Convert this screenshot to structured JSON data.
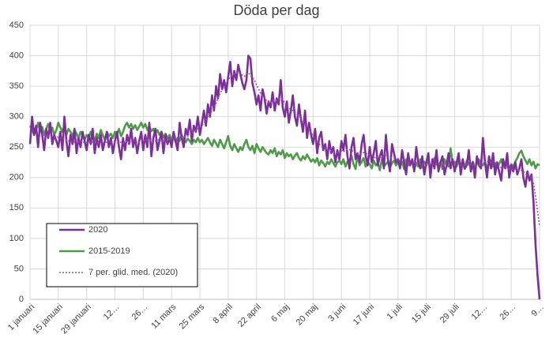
{
  "chart_data": {
    "type": "line",
    "title": "Döda per dag",
    "categories": [
      "1 januari",
      null,
      null,
      null,
      null,
      null,
      null,
      null,
      null,
      null,
      null,
      null,
      null,
      null,
      "15 januari",
      null,
      null,
      null,
      null,
      null,
      null,
      null,
      null,
      null,
      null,
      null,
      null,
      null,
      "29 januari",
      null,
      null,
      null,
      null,
      null,
      null,
      null,
      null,
      null,
      null,
      null,
      null,
      null,
      "12…",
      null,
      null,
      null,
      null,
      null,
      null,
      null,
      null,
      null,
      null,
      null,
      null,
      null,
      "26…",
      null,
      null,
      null,
      null,
      null,
      null,
      null,
      null,
      null,
      null,
      null,
      null,
      null,
      "11 mars",
      null,
      null,
      null,
      null,
      null,
      null,
      null,
      null,
      null,
      null,
      null,
      null,
      null,
      "25 mars",
      null,
      null,
      null,
      null,
      null,
      null,
      null,
      null,
      null,
      null,
      null,
      null,
      null,
      "8 april",
      null,
      null,
      null,
      null,
      null,
      null,
      null,
      null,
      null,
      null,
      null,
      null,
      null,
      "22 april",
      null,
      null,
      null,
      null,
      null,
      null,
      null,
      null,
      null,
      null,
      null,
      null,
      null,
      "6 maj",
      null,
      null,
      null,
      null,
      null,
      null,
      null,
      null,
      null,
      null,
      null,
      null,
      null,
      "20 maj",
      null,
      null,
      null,
      null,
      null,
      null,
      null,
      null,
      null,
      null,
      null,
      null,
      null,
      "3 juni",
      null,
      null,
      null,
      null,
      null,
      null,
      null,
      null,
      null,
      null,
      null,
      null,
      null,
      "17 juni",
      null,
      null,
      null,
      null,
      null,
      null,
      null,
      null,
      null,
      null,
      null,
      null,
      null,
      "1 juli",
      null,
      null,
      null,
      null,
      null,
      null,
      null,
      null,
      null,
      null,
      null,
      null,
      null,
      "15 juli",
      null,
      null,
      null,
      null,
      null,
      null,
      null,
      null,
      null,
      null,
      null,
      null,
      null,
      "29 juli",
      null,
      null,
      null,
      null,
      null,
      null,
      null,
      null,
      null,
      null,
      null,
      null,
      null,
      "12…",
      null,
      null,
      null,
      null,
      null,
      null,
      null,
      null,
      null,
      null,
      null,
      null,
      null,
      "26…",
      null,
      null,
      null,
      null,
      null,
      null,
      null,
      null,
      null,
      null,
      null,
      null,
      null,
      "9…"
    ],
    "series": [
      {
        "name": "2020",
        "color": "#7b2f98",
        "style": "solid",
        "values": [
          255,
          300,
          270,
          285,
          250,
          290,
          270,
          245,
          280,
          265,
          290,
          255,
          270,
          260,
          250,
          275,
          245,
          300,
          260,
          235,
          270,
          255,
          280,
          240,
          265,
          250,
          275,
          260,
          245,
          270,
          255,
          280,
          240,
          265,
          250,
          270,
          245,
          260,
          275,
          250,
          265,
          240,
          260,
          275,
          250,
          230,
          265,
          245,
          270,
          255,
          280,
          250,
          265,
          240,
          260,
          275,
          245,
          270,
          250,
          290,
          235,
          265,
          280,
          245,
          260,
          275,
          240,
          270,
          255,
          265,
          250,
          275,
          260,
          245,
          290,
          265,
          250,
          280,
          270,
          295,
          260,
          285,
          275,
          300,
          270,
          290,
          310,
          285,
          320,
          300,
          335,
          310,
          350,
          330,
          370,
          345,
          360,
          340,
          365,
          390,
          350,
          375,
          360,
          385,
          370,
          355,
          345,
          360,
          400,
          395,
          355,
          340,
          320,
          335,
          310,
          345,
          330,
          305,
          325,
          315,
          340,
          310,
          330,
          320,
          360,
          315,
          300,
          325,
          290,
          310,
          335,
          300,
          285,
          320,
          295,
          275,
          310,
          265,
          290,
          270,
          255,
          280,
          240,
          265,
          275,
          245,
          255,
          230,
          260,
          240,
          250,
          225,
          245,
          230,
          260,
          245,
          270,
          235,
          215,
          250,
          265,
          230,
          240,
          225,
          255,
          270,
          235,
          220,
          250,
          225,
          240,
          260,
          220,
          235,
          245,
          215,
          270,
          230,
          210,
          255,
          240,
          225,
          230,
          215,
          245,
          225,
          205,
          240,
          220,
          230,
          210,
          250,
          225,
          215,
          235,
          205,
          225,
          240,
          200,
          230,
          215,
          245,
          210,
          225,
          235,
          205,
          220,
          240,
          215,
          230,
          210,
          225,
          240,
          205,
          230,
          215,
          220,
          245,
          210,
          225,
          200,
          235,
          220,
          215,
          265,
          225,
          200,
          235,
          215,
          240,
          205,
          225,
          210,
          195,
          230,
          215,
          240,
          200,
          220,
          210,
          225,
          205,
          215,
          230,
          200,
          185,
          210,
          195,
          205,
          160,
          90,
          40,
          0
        ]
      },
      {
        "name": "2015-2019",
        "color": "#4f9a48",
        "style": "solid",
        "values": [
          285,
          280,
          270,
          278,
          290,
          275,
          283,
          270,
          280,
          288,
          275,
          282,
          270,
          278,
          290,
          282,
          275,
          285,
          270,
          280,
          275,
          268,
          278,
          272,
          265,
          275,
          270,
          262,
          270,
          265,
          275,
          268,
          260,
          272,
          265,
          278,
          270,
          262,
          275,
          268,
          272,
          265,
          275,
          270,
          280,
          268,
          275,
          285,
          290,
          282,
          288,
          280,
          286,
          278,
          284,
          290,
          282,
          288,
          278,
          284,
          276,
          280,
          272,
          278,
          270,
          275,
          266,
          272,
          265,
          270,
          262,
          268,
          258,
          265,
          260,
          270,
          262,
          258,
          264,
          260,
          255,
          262,
          258,
          265,
          258,
          262,
          255,
          260,
          265,
          258,
          252,
          262,
          256,
          250,
          262,
          255,
          248,
          258,
          268,
          252,
          245,
          255,
          248,
          242,
          250,
          245,
          255,
          262,
          250,
          245,
          252,
          240,
          255,
          248,
          242,
          250,
          245,
          240,
          238,
          245,
          240,
          248,
          235,
          242,
          238,
          245,
          232,
          240,
          235,
          238,
          230,
          236,
          240,
          232,
          228,
          235,
          230,
          238,
          232,
          226,
          230,
          225,
          232,
          220,
          228,
          224,
          218,
          226,
          222,
          230,
          224,
          218,
          225,
          228,
          222,
          230,
          218,
          226,
          228,
          236,
          222,
          214,
          238,
          220,
          226,
          232,
          218,
          225,
          222,
          215,
          228,
          220,
          224,
          212,
          230,
          218,
          222,
          226,
          216,
          224,
          228,
          220,
          225,
          218,
          226,
          214,
          230,
          220,
          222,
          228,
          212,
          224,
          218,
          230,
          216,
          226,
          220,
          228,
          216,
          224,
          232,
          222,
          218,
          226,
          214,
          230,
          222,
          218,
          248,
          224,
          226,
          218,
          232,
          220,
          224,
          214,
          228,
          222,
          218,
          226,
          216,
          224,
          230,
          222,
          220,
          226,
          214,
          222,
          228,
          218,
          224,
          216,
          222,
          230,
          218,
          224,
          220,
          215,
          222,
          218,
          226,
          232,
          240,
          244,
          235,
          228,
          222,
          230,
          220,
          226,
          215,
          222,
          220
        ]
      },
      {
        "name": "7 per. glid. med. (2020)",
        "color": "#9a4fb0",
        "style": "dotted",
        "values": [
          null,
          null,
          null,
          null,
          null,
          null,
          270,
          272,
          268,
          270,
          272,
          268,
          266,
          268,
          266,
          264,
          265,
          262,
          262,
          260,
          258,
          260,
          258,
          262,
          258,
          260,
          258,
          258,
          258,
          260,
          258,
          258,
          260,
          258,
          256,
          258,
          256,
          258,
          258,
          260,
          258,
          258,
          258,
          256,
          258,
          258,
          256,
          258,
          260,
          258,
          258,
          262,
          260,
          258,
          258,
          262,
          262,
          260,
          262,
          262,
          260,
          258,
          260,
          262,
          262,
          260,
          262,
          262,
          260,
          262,
          265,
          264,
          266,
          262,
          266,
          266,
          265,
          268,
          268,
          270,
          272,
          275,
          278,
          280,
          282,
          285,
          290,
          295,
          300,
          305,
          310,
          315,
          322,
          330,
          338,
          344,
          350,
          356,
          360,
          365,
          368,
          370,
          372,
          373,
          370,
          368,
          366,
          370,
          372,
          368,
          364,
          360,
          352,
          346,
          338,
          334,
          330,
          326,
          324,
          322,
          326,
          326,
          326,
          328,
          330,
          328,
          322,
          318,
          314,
          312,
          310,
          308,
          304,
          302,
          298,
          292,
          288,
          284,
          280,
          274,
          268,
          262,
          258,
          255,
          252,
          250,
          248,
          246,
          245,
          244,
          243,
          242,
          240,
          240,
          244,
          242,
          245,
          246,
          246,
          243,
          244,
          242,
          240,
          238,
          240,
          241,
          240,
          238,
          238,
          236,
          234,
          232,
          234,
          234,
          232,
          236,
          236,
          234,
          234,
          232,
          232,
          230,
          228,
          228,
          226,
          224,
          224,
          224,
          222,
          222,
          224,
          224,
          224,
          222,
          222,
          222,
          222,
          222,
          222,
          222,
          222,
          222,
          221,
          222,
          222,
          222,
          222,
          222,
          222,
          222,
          222,
          222,
          222,
          220,
          220,
          220,
          220,
          220,
          221,
          221,
          220,
          220,
          220,
          220,
          224,
          226,
          226,
          226,
          225,
          226,
          226,
          222,
          220,
          216,
          218,
          216,
          216,
          214,
          214,
          214,
          214,
          212,
          212,
          212,
          210,
          206,
          205,
          202,
          200,
          190,
          170,
          145,
          120
        ]
      }
    ],
    "ylim": [
      0,
      450
    ],
    "yticks": [
      0,
      50,
      100,
      150,
      200,
      250,
      300,
      350,
      400,
      450
    ],
    "grid": true,
    "legend": "lower left"
  }
}
